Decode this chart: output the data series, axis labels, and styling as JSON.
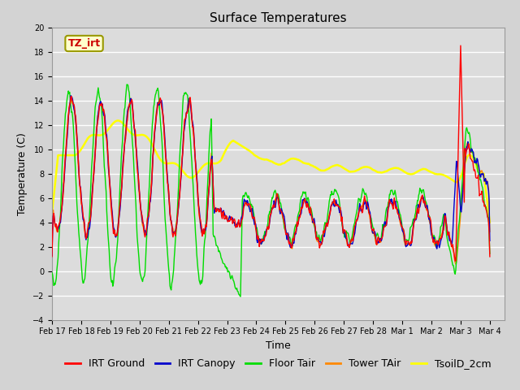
{
  "title": "Surface Temperatures",
  "xlabel": "Time",
  "ylabel": "Temperature (C)",
  "ylim": [
    -4,
    20
  ],
  "yticks": [
    -4,
    -2,
    0,
    2,
    4,
    6,
    8,
    10,
    12,
    14,
    16,
    18,
    20
  ],
  "xtick_labels": [
    "Feb 17",
    "Feb 18",
    "Feb 19",
    "Feb 20",
    "Feb 21",
    "Feb 22",
    "Feb 23",
    "Feb 24",
    "Feb 25",
    "Feb 26",
    "Feb 27",
    "Feb 28",
    "Mar 1",
    "Mar 2",
    "Mar 3",
    "Mar 4"
  ],
  "annotation_text": "TZ_irt",
  "annotation_bbox_facecolor": "#ffffcc",
  "annotation_bbox_edgecolor": "#999900",
  "annotation_text_color": "#cc0000",
  "series_colors": {
    "IRT Ground": "#ff0000",
    "IRT Canopy": "#0000cc",
    "Floor Tair": "#00dd00",
    "Tower TAir": "#ff8800",
    "TsoilD_2cm": "#ffff00"
  },
  "background_color": "#dcdcdc",
  "fig_background_color": "#d3d3d3",
  "grid_color": "#ffffff",
  "title_fontsize": 11,
  "axis_label_fontsize": 9,
  "tick_fontsize": 7,
  "legend_fontsize": 9,
  "line_width": 1.0
}
